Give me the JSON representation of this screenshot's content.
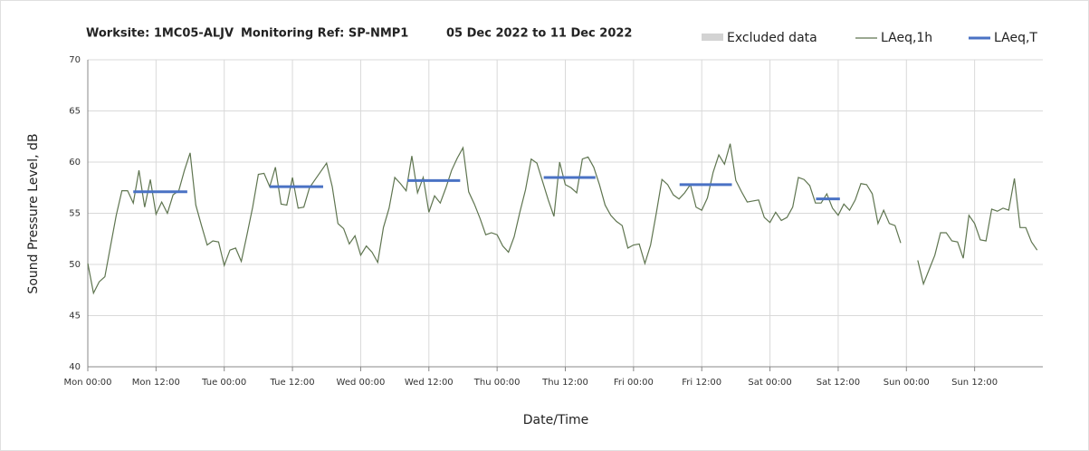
{
  "chart_data": {
    "type": "line",
    "title": [
      "Worksite: 1MC05-ALJV",
      "Monitoring Ref: SP-NMP1",
      "05 Dec 2022 to 11 Dec 2022"
    ],
    "x_label": "Date/Time",
    "y_label": "Sound Pressure Level, dB",
    "xlim": [
      0,
      168
    ],
    "ylim": [
      40,
      70
    ],
    "xticks": [
      {
        "value": 0,
        "label": "Mon 00:00"
      },
      {
        "value": 12,
        "label": "Mon 12:00"
      },
      {
        "value": 24,
        "label": "Tue 00:00"
      },
      {
        "value": 36,
        "label": "Tue 12:00"
      },
      {
        "value": 48,
        "label": "Wed 00:00"
      },
      {
        "value": 60,
        "label": "Wed 12:00"
      },
      {
        "value": 72,
        "label": "Thu 00:00"
      },
      {
        "value": 84,
        "label": "Thu 12:00"
      },
      {
        "value": 96,
        "label": "Fri 00:00"
      },
      {
        "value": 108,
        "label": "Fri 12:00"
      },
      {
        "value": 120,
        "label": "Sat 00:00"
      },
      {
        "value": 132,
        "label": "Sat 12:00"
      },
      {
        "value": 144,
        "label": "Sun 00:00"
      },
      {
        "value": 156,
        "label": "Sun 12:00"
      }
    ],
    "yticks": [
      40,
      45,
      50,
      55,
      60,
      65,
      70
    ],
    "grid": true,
    "excluded": {
      "name": "Excluded data",
      "color": "#d3d3d3"
    },
    "x": [
      0,
      1,
      2,
      3,
      4,
      5,
      6,
      7,
      8,
      9,
      10,
      11,
      12,
      13,
      14,
      15,
      16,
      17,
      18,
      19,
      20,
      21,
      22,
      23,
      24,
      25,
      26,
      27,
      28,
      29,
      30,
      31,
      32,
      33,
      34,
      35,
      36,
      37,
      38,
      39,
      40,
      41,
      42,
      43,
      44,
      45,
      46,
      47,
      48,
      49,
      50,
      51,
      52,
      53,
      54,
      55,
      56,
      57,
      58,
      59,
      60,
      61,
      62,
      63,
      64,
      65,
      66,
      67,
      68,
      69,
      70,
      71,
      72,
      73,
      74,
      75,
      76,
      77,
      78,
      79,
      80,
      81,
      82,
      83,
      84,
      85,
      86,
      87,
      88,
      89,
      90,
      91,
      92,
      93,
      94,
      95,
      96,
      97,
      98,
      99,
      100,
      101,
      102,
      103,
      104,
      105,
      106,
      107,
      108,
      109,
      110,
      111,
      112,
      113,
      114,
      115,
      116,
      117,
      118,
      119,
      120,
      121,
      122,
      123,
      124,
      125,
      126,
      127,
      128,
      129,
      130,
      131,
      132,
      133,
      134,
      135,
      136,
      137,
      138,
      139,
      140,
      141,
      142,
      143,
      144,
      145,
      146,
      147,
      148,
      149,
      150,
      151,
      152,
      153,
      154,
      155,
      156,
      157,
      158,
      159,
      160,
      161,
      162,
      163,
      164,
      165,
      166,
      167
    ],
    "series": [
      {
        "name": "LAeq,1h",
        "color": "#5f7550",
        "values": [
          50.1,
          47.2,
          48.3,
          48.8,
          51.8,
          54.8,
          57.2,
          57.2,
          56.0,
          59.2,
          55.6,
          58.3,
          54.9,
          56.1,
          55.0,
          56.8,
          57.2,
          59.2,
          60.9,
          55.8,
          53.8,
          51.9,
          52.3,
          52.2,
          49.9,
          51.4,
          51.6,
          50.3,
          52.9,
          55.6,
          58.8,
          58.9,
          57.6,
          59.5,
          55.9,
          55.8,
          58.5,
          55.5,
          55.6,
          57.5,
          58.3,
          59.1,
          59.9,
          57.6,
          54.0,
          53.5,
          52.0,
          52.8,
          50.9,
          51.8,
          51.2,
          50.2,
          53.6,
          55.5,
          58.5,
          57.9,
          57.2,
          60.6,
          57.0,
          58.5,
          55.1,
          56.7,
          56.0,
          57.5,
          59.2,
          60.4,
          61.4,
          57.1,
          55.9,
          54.5,
          52.9,
          53.1,
          52.9,
          51.8,
          51.2,
          52.7,
          55.1,
          57.3,
          60.3,
          59.9,
          58.1,
          56.3,
          54.7,
          60.0,
          57.8,
          57.5,
          57.0,
          60.3,
          60.5,
          59.5,
          57.8,
          55.8,
          54.8,
          54.2,
          53.8,
          51.6,
          51.9,
          52.0,
          50.1,
          51.9,
          55.0,
          58.3,
          57.8,
          56.8,
          56.4,
          57.0,
          57.8,
          55.6,
          55.3,
          56.5,
          59.0,
          60.7,
          59.8,
          61.8,
          58.2,
          57.1,
          56.1,
          56.2,
          56.3,
          54.6,
          54.1,
          55.1,
          54.3,
          54.6,
          55.6,
          58.5,
          58.3,
          57.7,
          56.0,
          56.0,
          56.9,
          55.5,
          54.8,
          55.9,
          55.3,
          56.3,
          57.9,
          57.8,
          56.9,
          54.0,
          55.3,
          54.0,
          53.8,
          52.1,
          null,
          null,
          50.4,
          48.1,
          49.5,
          50.9,
          53.1,
          53.1,
          52.3,
          52.2,
          50.6,
          54.8,
          54.0,
          52.4,
          52.3,
          55.4,
          55.2,
          55.5,
          55.3,
          58.4,
          53.6,
          53.6,
          52.2,
          51.4
        ]
      },
      {
        "name": "LAeq,T",
        "color": "#4a72c4",
        "segments": [
          {
            "x": [
              8,
              17.5
            ],
            "value": 57.1
          },
          {
            "x": [
              32,
              41.4
            ],
            "value": 57.6
          },
          {
            "x": [
              56.2,
              65.5
            ],
            "value": 58.2
          },
          {
            "x": [
              80.2,
              89.3
            ],
            "value": 58.5
          },
          {
            "x": [
              104.1,
              113.3
            ],
            "value": 57.8
          },
          {
            "x": [
              128.1,
              132.3
            ],
            "value": 56.4
          }
        ]
      }
    ]
  }
}
